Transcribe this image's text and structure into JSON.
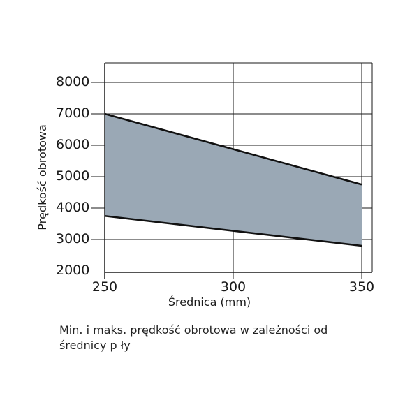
{
  "chart_data": {
    "type": "area",
    "title": "",
    "xlabel": "Średnica (mm)",
    "ylabel": "Prędkość obrotowa",
    "x": [
      250,
      350
    ],
    "x_ticks": [
      "250",
      "300",
      "350"
    ],
    "y_ticks": [
      "2000",
      "3000",
      "4000",
      "5000",
      "6000",
      "7000",
      "8000"
    ],
    "xlim": [
      250,
      350
    ],
    "ylim": [
      2000,
      8000
    ],
    "grid": true,
    "series": [
      {
        "name": "",
        "x": [
          250,
          350
        ],
        "values": [
          7000,
          4750
        ]
      },
      {
        "name": "",
        "x": [
          250,
          350
        ],
        "values": [
          3750,
          2800
        ]
      }
    ],
    "colors": {
      "band": "#9aa8b5",
      "line": "#111111",
      "grid": "#1a1a1a"
    }
  },
  "caption": {
    "line1": "Min. i maks. prędkość obrotowa w zależności od",
    "line2": "średnicy p ły"
  }
}
